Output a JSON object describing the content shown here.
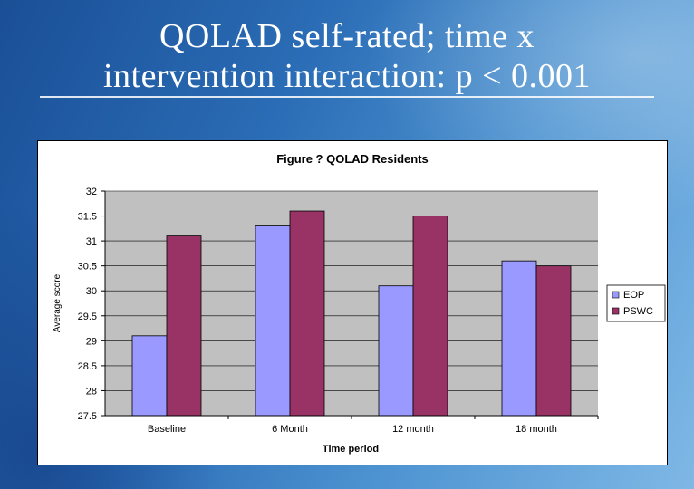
{
  "slide": {
    "title_line1": "QOLAD self-rated; time x",
    "title_line2": "intervention interaction: p < 0.001"
  },
  "chart_data": {
    "type": "bar",
    "title": "Figure ? QOLAD Residents",
    "xlabel": "Time period",
    "ylabel": "Average score",
    "categories": [
      "Baseline",
      "6 Month",
      "12 month",
      "18 month"
    ],
    "series": [
      {
        "name": "EOP",
        "color": "#9999ff",
        "values": [
          29.1,
          31.3,
          30.1,
          30.6
        ]
      },
      {
        "name": "PSWC",
        "color": "#993366",
        "values": [
          31.1,
          31.6,
          31.5,
          30.5
        ]
      }
    ],
    "ylim": [
      27.5,
      32
    ],
    "yticks": [
      "32",
      "31.5",
      "31",
      "30.5",
      "30",
      "29.5",
      "29",
      "28.5",
      "28",
      "27.5"
    ],
    "grid": true,
    "legend_position": "right",
    "plot_background": "#c0c0c0"
  }
}
